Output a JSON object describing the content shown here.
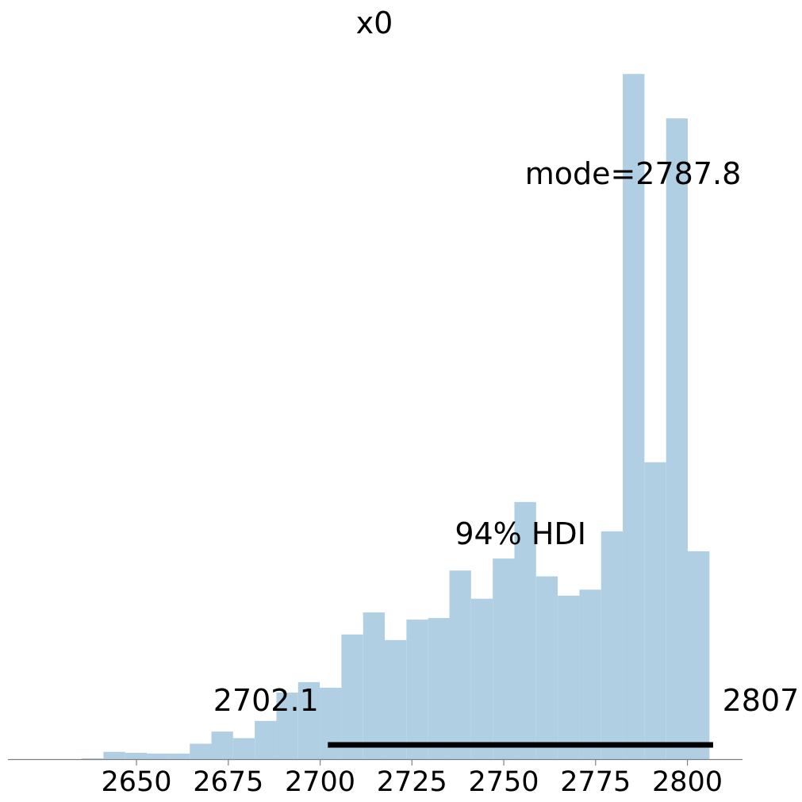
{
  "chart_data": {
    "type": "bar",
    "title": "x0",
    "xlabel": "",
    "ylabel": "",
    "xlim": [
      2615,
      2815
    ],
    "ylim": [
      0,
      0.0355
    ],
    "bar_color": "#b1cfe3",
    "hdi_color": "#000000",
    "axis_color": "#808080",
    "x_ticks": [
      "2650",
      "2675",
      "2700",
      "2725",
      "2750",
      "2775",
      "2800"
    ],
    "bins": [
      {
        "x0": 2635.1,
        "x1": 2641.0,
        "density": 4e-05
      },
      {
        "x0": 2641.0,
        "x1": 2646.9,
        "density": 0.00038
      },
      {
        "x0": 2646.9,
        "x1": 2652.8,
        "density": 0.00033
      },
      {
        "x0": 2652.8,
        "x1": 2658.6,
        "density": 0.00029
      },
      {
        "x0": 2658.6,
        "x1": 2664.5,
        "density": 0.00029
      },
      {
        "x0": 2664.5,
        "x1": 2670.4,
        "density": 0.0008
      },
      {
        "x0": 2670.4,
        "x1": 2676.3,
        "density": 0.00143
      },
      {
        "x0": 2676.3,
        "x1": 2682.2,
        "density": 0.00109
      },
      {
        "x0": 2682.2,
        "x1": 2688.1,
        "density": 0.00198
      },
      {
        "x0": 2688.1,
        "x1": 2694.0,
        "density": 0.00345
      },
      {
        "x0": 2694.0,
        "x1": 2699.9,
        "density": 0.00399
      },
      {
        "x0": 2699.9,
        "x1": 2705.8,
        "density": 0.0037
      },
      {
        "x0": 2705.8,
        "x1": 2711.7,
        "density": 0.00646
      },
      {
        "x0": 2711.7,
        "x1": 2717.6,
        "density": 0.0076
      },
      {
        "x0": 2717.6,
        "x1": 2723.5,
        "density": 0.00617
      },
      {
        "x0": 2723.5,
        "x1": 2729.4,
        "density": 0.00723
      },
      {
        "x0": 2729.4,
        "x1": 2735.2,
        "density": 0.00731
      },
      {
        "x0": 2735.2,
        "x1": 2741.1,
        "density": 0.00977
      },
      {
        "x0": 2741.1,
        "x1": 2747.0,
        "density": 0.00831
      },
      {
        "x0": 2747.0,
        "x1": 2752.9,
        "density": 0.01039
      },
      {
        "x0": 2752.9,
        "x1": 2758.8,
        "density": 0.01332
      },
      {
        "x0": 2758.8,
        "x1": 2764.7,
        "density": 0.00947
      },
      {
        "x0": 2764.7,
        "x1": 2770.6,
        "density": 0.00847
      },
      {
        "x0": 2770.6,
        "x1": 2776.5,
        "density": 0.00878
      },
      {
        "x0": 2776.5,
        "x1": 2782.4,
        "density": 0.0118
      },
      {
        "x0": 2782.4,
        "x1": 2788.3,
        "density": 0.03549
      },
      {
        "x0": 2788.3,
        "x1": 2794.2,
        "density": 0.01538
      },
      {
        "x0": 2794.2,
        "x1": 2800.1,
        "density": 0.03319
      },
      {
        "x0": 2800.1,
        "x1": 2806.0,
        "density": 0.01077
      }
    ],
    "hdi": {
      "label": "94% HDI",
      "low": 2702.1,
      "high": 2807,
      "low_label": "2702.1",
      "high_label": "2807"
    },
    "mode": {
      "value": 2787.8,
      "label": "mode=2787.8"
    }
  }
}
